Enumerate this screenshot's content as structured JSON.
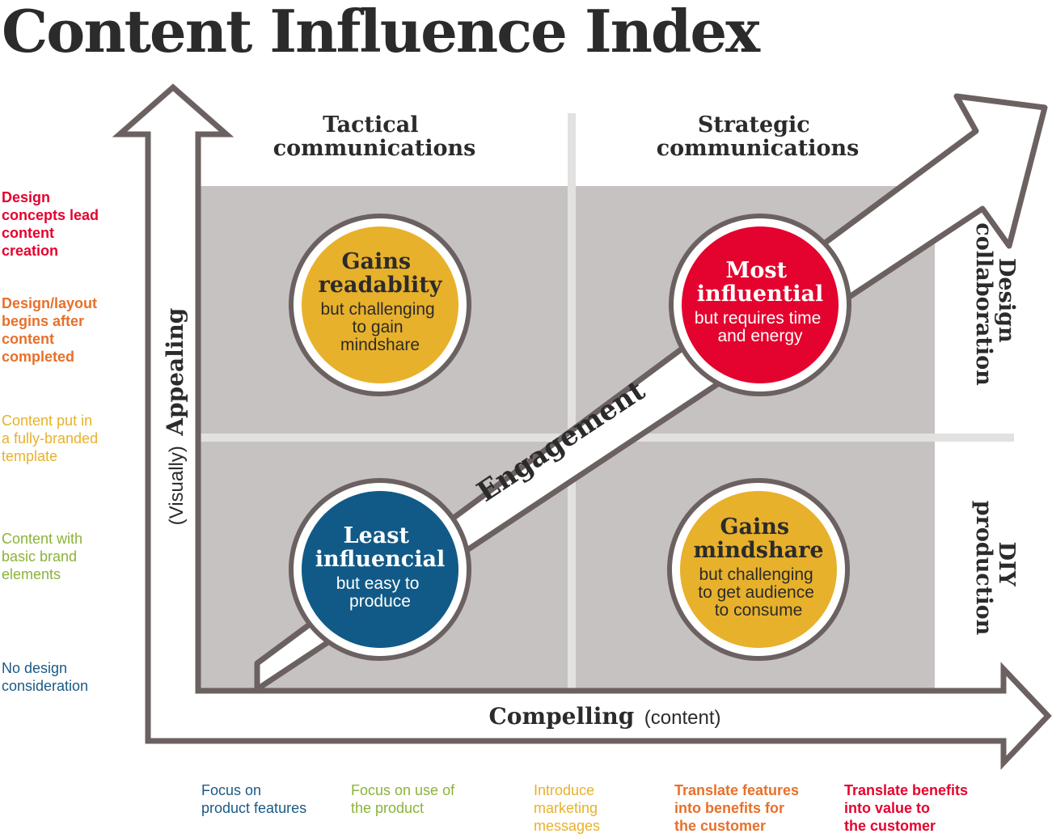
{
  "title": "Content Influence Index",
  "colors": {
    "red": "#e4032e",
    "orange": "#e8702a",
    "yellow": "#e8b12b",
    "green": "#8bb33a",
    "blue": "#1a5a85",
    "navy": "#115a87",
    "gray_fill": "#c6c2c1",
    "outline": "#6b6160",
    "text_dark": "#2b2b2b"
  },
  "columns": {
    "left": [
      "Tactical",
      "communications"
    ],
    "right": [
      "Strategic",
      "communications"
    ]
  },
  "rows": {
    "top": [
      "Design",
      "collaboration"
    ],
    "bottom": [
      "DIY",
      "production"
    ]
  },
  "axes": {
    "x_main": "Compelling",
    "x_sub": "(content)",
    "y_main": "Appealing",
    "y_sub": "(Visually)",
    "diagonal": "Engagement"
  },
  "circles": {
    "top_left": {
      "head": [
        "Gains",
        "readablity"
      ],
      "body": [
        "but challenging",
        "to gain",
        "mindshare"
      ]
    },
    "top_right": {
      "head": [
        "Most",
        "influential"
      ],
      "body": [
        "but requires time",
        "and energy"
      ]
    },
    "bottom_left": {
      "head": [
        "Least",
        "influencial"
      ],
      "body": [
        "but easy to",
        "produce"
      ]
    },
    "bottom_right": {
      "head": [
        "Gains",
        "mindshare"
      ],
      "body": [
        "but challenging",
        "to get audience",
        "to consume"
      ]
    }
  },
  "left_scale": [
    {
      "lines": [
        "Design",
        "concepts lead",
        "content",
        "creation"
      ],
      "bold": true,
      "color": "#e4032e"
    },
    {
      "lines": [
        "Design/layout",
        "begins after",
        "content",
        "completed"
      ],
      "bold": true,
      "color": "#e8702a"
    },
    {
      "lines": [
        "Content put in",
        "a fully-branded",
        "template"
      ],
      "bold": false,
      "color": "#e8b12b"
    },
    {
      "lines": [
        "Content with",
        "basic brand",
        "elements"
      ],
      "bold": false,
      "color": "#8bb33a"
    },
    {
      "lines": [
        "No design",
        "consideration"
      ],
      "bold": false,
      "color": "#1a5a85"
    }
  ],
  "bottom_scale": [
    {
      "lines": [
        "Focus on",
        "product features"
      ],
      "bold": false,
      "color": "#1a5a85"
    },
    {
      "lines": [
        "Focus on use of",
        "the product"
      ],
      "bold": false,
      "color": "#8bb33a"
    },
    {
      "lines": [
        "Introduce",
        "marketing",
        "messages"
      ],
      "bold": false,
      "color": "#e8b12b"
    },
    {
      "lines": [
        "Translate features",
        "into benefits for",
        "the customer"
      ],
      "bold": true,
      "color": "#e8702a"
    },
    {
      "lines": [
        "Translate benefits",
        "into value to",
        "the customer"
      ],
      "bold": true,
      "color": "#e4032e"
    }
  ]
}
